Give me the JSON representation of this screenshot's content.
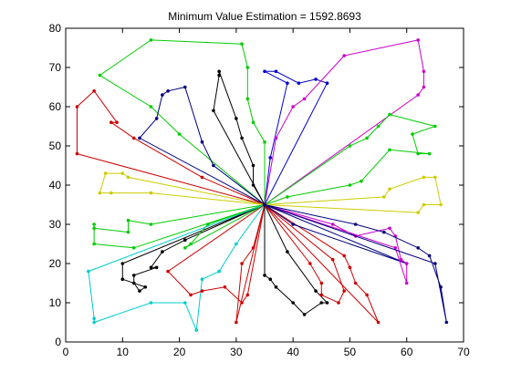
{
  "chart_data": {
    "type": "line",
    "title": "Minimum Value Estimation = 1592.8693",
    "xlabel": "",
    "ylabel": "",
    "xlim": [
      0,
      70
    ],
    "ylim": [
      0,
      80
    ],
    "xticks": [
      0,
      10,
      20,
      30,
      40,
      50,
      60,
      70
    ],
    "yticks": [
      0,
      10,
      20,
      30,
      40,
      50,
      60,
      70,
      80
    ],
    "grid": false,
    "depot": [
      35,
      35
    ],
    "series": [
      {
        "color": "#00cc00",
        "points": [
          [
            35,
            35
          ],
          [
            35,
            51
          ],
          [
            33,
            56
          ],
          [
            32,
            62
          ],
          [
            32,
            70
          ],
          [
            31,
            76
          ],
          [
            15,
            77
          ],
          [
            6,
            68
          ],
          [
            15,
            60
          ],
          [
            20,
            53
          ],
          [
            35,
            35
          ]
        ]
      },
      {
        "color": "#000080",
        "points": [
          [
            35,
            35
          ],
          [
            26,
            45
          ],
          [
            24,
            51
          ],
          [
            21,
            65
          ],
          [
            18,
            64
          ],
          [
            17,
            63
          ],
          [
            16,
            57
          ],
          [
            13,
            52
          ],
          [
            35,
            35
          ]
        ]
      },
      {
        "color": "#000000",
        "points": [
          [
            35,
            35
          ],
          [
            33,
            40
          ],
          [
            33,
            45
          ],
          [
            31,
            52
          ],
          [
            30,
            57
          ],
          [
            27,
            69
          ],
          [
            27,
            68
          ],
          [
            26,
            59
          ],
          [
            35,
            35
          ]
        ]
      },
      {
        "color": "#0000cc",
        "points": [
          [
            35,
            35
          ],
          [
            36,
            47
          ],
          [
            39,
            66
          ],
          [
            35,
            69
          ],
          [
            37,
            69
          ],
          [
            41,
            66
          ],
          [
            44,
            67
          ],
          [
            46,
            66
          ],
          [
            35,
            35
          ]
        ]
      },
      {
        "color": "#cc00cc",
        "points": [
          [
            35,
            35
          ],
          [
            37,
            52
          ],
          [
            40,
            60
          ],
          [
            42,
            62
          ],
          [
            49,
            73
          ],
          [
            62,
            77
          ],
          [
            63,
            69
          ],
          [
            63,
            65
          ],
          [
            62,
            63
          ],
          [
            35,
            35
          ]
        ]
      },
      {
        "color": "#00cc00",
        "points": [
          [
            35,
            35
          ],
          [
            39,
            37
          ],
          [
            50,
            40
          ],
          [
            52,
            41
          ],
          [
            57,
            49
          ],
          [
            64,
            48
          ],
          [
            62,
            48
          ],
          [
            61,
            53
          ],
          [
            65,
            55
          ],
          [
            57,
            58
          ],
          [
            55,
            55
          ],
          [
            53,
            52
          ],
          [
            50,
            50
          ],
          [
            35,
            35
          ]
        ]
      },
      {
        "color": "#cc0000",
        "points": [
          [
            35,
            35
          ],
          [
            24,
            42
          ],
          [
            12,
            52
          ],
          [
            8,
            56
          ],
          [
            9,
            56
          ],
          [
            5,
            64
          ],
          [
            2,
            60
          ],
          [
            2,
            48
          ],
          [
            35,
            35
          ]
        ]
      },
      {
        "color": "#cccc00",
        "points": [
          [
            35,
            35
          ],
          [
            11,
            42
          ],
          [
            10,
            43
          ],
          [
            7,
            43
          ],
          [
            6,
            38
          ],
          [
            8,
            38
          ],
          [
            15,
            38
          ],
          [
            35,
            35
          ]
        ]
      },
      {
        "color": "#cccc00",
        "points": [
          [
            35,
            35
          ],
          [
            56,
            37
          ],
          [
            57,
            39
          ],
          [
            63,
            42
          ],
          [
            65,
            42
          ],
          [
            66,
            35
          ],
          [
            63,
            35
          ],
          [
            62,
            33
          ],
          [
            35,
            35
          ]
        ]
      },
      {
        "color": "#00cc00",
        "points": [
          [
            35,
            35
          ],
          [
            15,
            30
          ],
          [
            11,
            31
          ],
          [
            11,
            28
          ],
          [
            5,
            29
          ],
          [
            5,
            30
          ],
          [
            5,
            25
          ],
          [
            12,
            24
          ],
          [
            35,
            35
          ]
        ]
      },
      {
        "color": "#000000",
        "points": [
          [
            35,
            35
          ],
          [
            21,
            26
          ],
          [
            17,
            23
          ],
          [
            15,
            19
          ],
          [
            16,
            19
          ],
          [
            12,
            17
          ],
          [
            12,
            15
          ],
          [
            13,
            13
          ],
          [
            14,
            14
          ],
          [
            10,
            16
          ],
          [
            10,
            20
          ],
          [
            35,
            35
          ]
        ]
      },
      {
        "color": "#00cc00",
        "points": [
          [
            35,
            35
          ],
          [
            25,
            30
          ],
          [
            22,
            25
          ],
          [
            21,
            24
          ],
          [
            35,
            35
          ]
        ]
      },
      {
        "color": "#00cccc",
        "points": [
          [
            35,
            35
          ],
          [
            30,
            25
          ],
          [
            27,
            18
          ],
          [
            24,
            16
          ],
          [
            23,
            3
          ],
          [
            21,
            10
          ],
          [
            15,
            10
          ],
          [
            5,
            5
          ],
          [
            5,
            6
          ],
          [
            4,
            18
          ],
          [
            35,
            35
          ]
        ]
      },
      {
        "color": "#cc0000",
        "points": [
          [
            35,
            35
          ],
          [
            32,
            12
          ],
          [
            31,
            10
          ],
          [
            28,
            14
          ],
          [
            24,
            13
          ],
          [
            22,
            12
          ],
          [
            18,
            18
          ],
          [
            35,
            35
          ]
        ]
      },
      {
        "color": "#cc0000",
        "points": [
          [
            35,
            35
          ],
          [
            33,
            24
          ],
          [
            31,
            20
          ],
          [
            30,
            5
          ],
          [
            35,
            35
          ]
        ]
      },
      {
        "color": "#000000",
        "points": [
          [
            35,
            35
          ],
          [
            35,
            17
          ],
          [
            36,
            16
          ],
          [
            37,
            14
          ],
          [
            40,
            10
          ],
          [
            42,
            7
          ],
          [
            45,
            10
          ],
          [
            46,
            10
          ],
          [
            44,
            13
          ],
          [
            39,
            23
          ],
          [
            35,
            35
          ]
        ]
      },
      {
        "color": "#cc0000",
        "points": [
          [
            35,
            35
          ],
          [
            43,
            20
          ],
          [
            45,
            15
          ],
          [
            45,
            12
          ],
          [
            48,
            10
          ],
          [
            49,
            13
          ],
          [
            47,
            21
          ],
          [
            35,
            35
          ]
        ]
      },
      {
        "color": "#cc0000",
        "points": [
          [
            35,
            35
          ],
          [
            49,
            22
          ],
          [
            50,
            19
          ],
          [
            51,
            15
          ],
          [
            53,
            12
          ],
          [
            55,
            5
          ],
          [
            35,
            35
          ]
        ]
      },
      {
        "color": "#000080",
        "points": [
          [
            35,
            35
          ],
          [
            40,
            30
          ],
          [
            60,
            20
          ],
          [
            35,
            35
          ]
        ]
      },
      {
        "color": "#cc00cc",
        "points": [
          [
            35,
            35
          ],
          [
            47,
            30
          ],
          [
            51,
            27
          ],
          [
            57,
            29
          ],
          [
            58,
            27
          ],
          [
            59,
            21
          ],
          [
            60,
            20
          ],
          [
            60,
            15
          ],
          [
            58,
            24
          ],
          [
            35,
            35
          ]
        ]
      },
      {
        "color": "#000080",
        "points": [
          [
            35,
            35
          ],
          [
            51,
            30
          ],
          [
            56,
            28
          ],
          [
            62,
            24
          ],
          [
            64,
            22
          ],
          [
            66,
            14
          ],
          [
            67,
            5
          ],
          [
            65,
            20
          ],
          [
            35,
            35
          ]
        ]
      }
    ]
  }
}
